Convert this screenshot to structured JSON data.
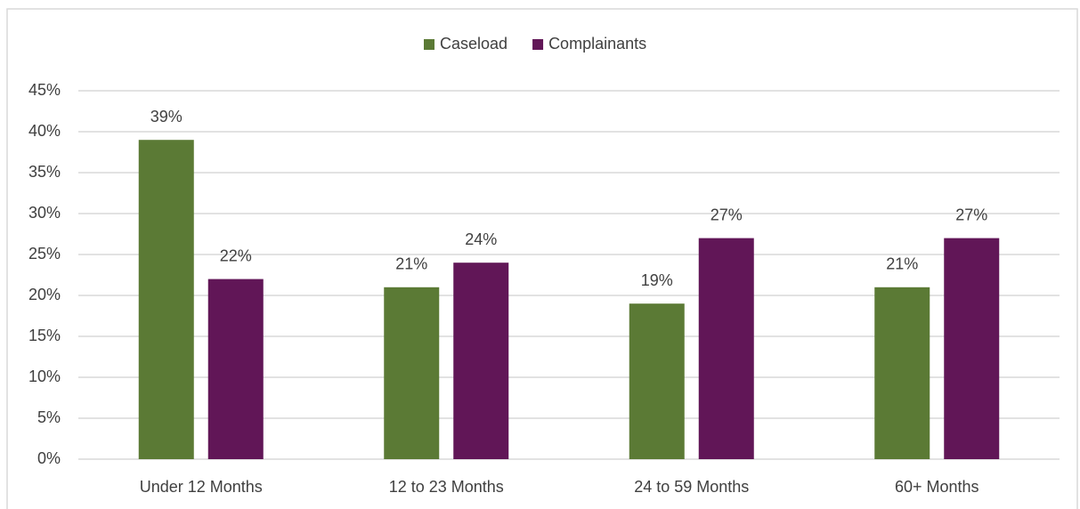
{
  "chart_data": {
    "type": "bar",
    "categories": [
      "Under 12 Months",
      "12 to 23 Months",
      "24 to 59 Months",
      "60+ Months"
    ],
    "series": [
      {
        "name": "Caseload",
        "color": "#5b7a35",
        "values": [
          39,
          21,
          19,
          21
        ],
        "value_labels": [
          "39%",
          "21%",
          "19%",
          "21%"
        ]
      },
      {
        "name": "Complainants",
        "color": "#611657",
        "values": [
          22,
          24,
          27,
          27
        ],
        "value_labels": [
          "22%",
          "24%",
          "27%",
          "27%"
        ]
      }
    ],
    "ylim": [
      0,
      45
    ],
    "yticks": [
      {
        "value": 0,
        "label": "0%"
      },
      {
        "value": 5,
        "label": "5%"
      },
      {
        "value": 10,
        "label": "10%"
      },
      {
        "value": 15,
        "label": "15%"
      },
      {
        "value": 20,
        "label": "20%"
      },
      {
        "value": 25,
        "label": "25%"
      },
      {
        "value": 30,
        "label": "30%"
      },
      {
        "value": 35,
        "label": "35%"
      },
      {
        "value": 40,
        "label": "40%"
      },
      {
        "value": 45,
        "label": "45%"
      }
    ],
    "grid": true,
    "legend": "top"
  }
}
